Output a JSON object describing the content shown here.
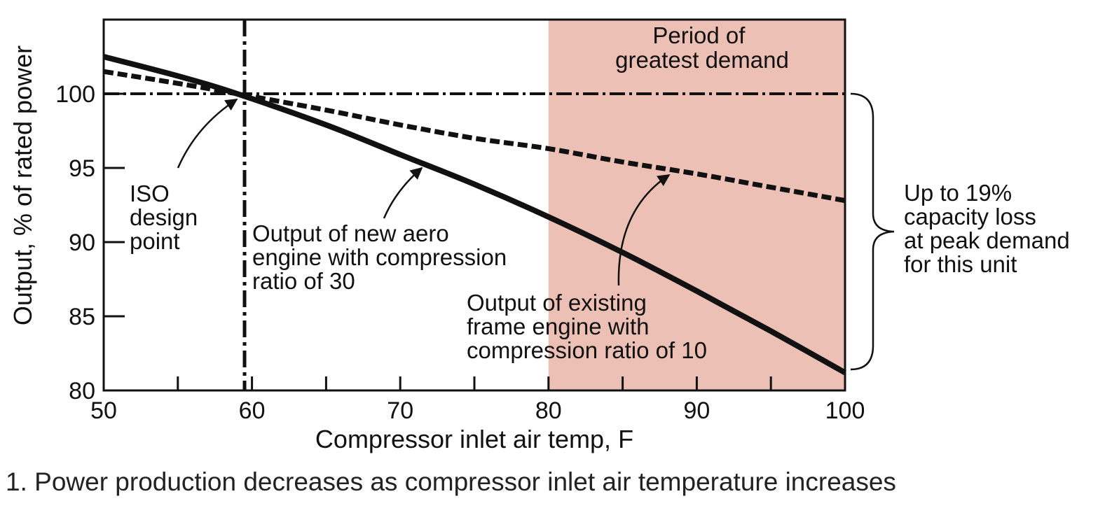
{
  "caption": "1. Power production decreases as compressor inlet air temperature increases",
  "colors": {
    "demand_band": "#edc0b5",
    "ink": "#111111"
  },
  "chart_data": {
    "type": "line",
    "xlabel": "Compressor inlet air temp, F",
    "ylabel": "Output, % of rated power",
    "xlim": [
      50,
      100
    ],
    "ylim": [
      80,
      105
    ],
    "x_ticks": [
      50,
      60,
      70,
      80,
      90,
      100
    ],
    "x_minor_ticks": [
      55,
      65,
      75,
      85,
      95
    ],
    "y_ticks": [
      80,
      85,
      90,
      95,
      100
    ],
    "grid": false,
    "series": [
      {
        "style": "solid-thick",
        "x": [
          50,
          55,
          59,
          65,
          70,
          75,
          80,
          85,
          90,
          95,
          100
        ],
        "y": [
          102.5,
          101.2,
          100.0,
          97.9,
          95.9,
          93.9,
          91.7,
          89.3,
          86.7,
          84.0,
          81.2
        ]
      },
      {
        "style": "dashed-thick",
        "x": [
          50,
          55,
          59,
          65,
          70,
          75,
          80,
          85,
          90,
          95,
          100
        ],
        "y": [
          101.5,
          100.7,
          100.0,
          98.9,
          97.9,
          97.0,
          96.3,
          95.4,
          94.6,
          93.7,
          92.8
        ]
      }
    ],
    "reference_lines": {
      "horizontal_y": 100,
      "vertical_x": 59.5
    },
    "shaded_region": {
      "x_from": 80,
      "x_to": 100,
      "label_lines": [
        "Period of",
        "greatest demand"
      ]
    },
    "annotations": [
      {
        "id": "iso",
        "lines": [
          "ISO",
          "design",
          "point"
        ]
      },
      {
        "id": "aero",
        "lines": [
          "Output of new aero",
          "engine with compression",
          "ratio of 30"
        ]
      },
      {
        "id": "frame",
        "lines": [
          "Output of existing",
          "frame engine with",
          "compression ratio of 10"
        ]
      },
      {
        "id": "loss",
        "lines": [
          "Up to 19%",
          "capacity loss",
          "at peak demand",
          "for this unit"
        ]
      }
    ]
  }
}
